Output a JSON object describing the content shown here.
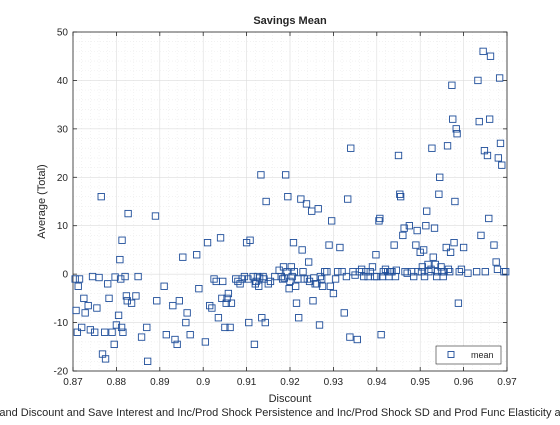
{
  "chart_data": {
    "type": "scatter",
    "title": "Savings Mean",
    "xlabel": "Discount",
    "ylabel": "Average (Total)",
    "footer": "and Discount and Save Interest and Inc/Prod Shock Persistence and Inc/Prod Shock SD and Prod Func Elasticity a",
    "xlim": [
      0.87,
      0.97
    ],
    "ylim": [
      -20,
      50
    ],
    "x_ticks": [
      "0.87",
      "0.88",
      "0.89",
      "0.9",
      "0.91",
      "0.92",
      "0.93",
      "0.94",
      "0.95",
      "0.96",
      "0.97"
    ],
    "y_ticks": [
      "-20",
      "-10",
      "0",
      "10",
      "20",
      "30",
      "40",
      "50"
    ],
    "grid": "major and minor, dotted",
    "legend": {
      "position": "bottom-right",
      "entries": [
        "mean"
      ]
    },
    "marker": "open square",
    "marker_color": "#1f4e9a",
    "series": [
      {
        "name": "mean",
        "points": [
          [
            0.8705,
            -1
          ],
          [
            0.8707,
            -7.5
          ],
          [
            0.871,
            -12
          ],
          [
            0.8712,
            -2.5
          ],
          [
            0.8715,
            -1
          ],
          [
            0.872,
            -11
          ],
          [
            0.8725,
            -5
          ],
          [
            0.8728,
            -8
          ],
          [
            0.8735,
            -6.5
          ],
          [
            0.874,
            -11.5
          ],
          [
            0.8745,
            -0.5
          ],
          [
            0.875,
            -12
          ],
          [
            0.8755,
            -7
          ],
          [
            0.876,
            -0.7
          ],
          [
            0.8765,
            16
          ],
          [
            0.8768,
            -16.5
          ],
          [
            0.8773,
            -12
          ],
          [
            0.8775,
            -17.5
          ],
          [
            0.878,
            -2
          ],
          [
            0.8783,
            -5
          ],
          [
            0.879,
            -12
          ],
          [
            0.8795,
            -14.5
          ],
          [
            0.8797,
            -0.6
          ],
          [
            0.88,
            -10.5
          ],
          [
            0.8805,
            -8.5
          ],
          [
            0.8808,
            3
          ],
          [
            0.881,
            -1
          ],
          [
            0.8812,
            -11
          ],
          [
            0.8813,
            7
          ],
          [
            0.8815,
            -12
          ],
          [
            0.882,
            -0.5
          ],
          [
            0.8823,
            -4.5
          ],
          [
            0.8825,
            -5.5
          ],
          [
            0.8827,
            12.5
          ],
          [
            0.8835,
            -6
          ],
          [
            0.8845,
            -4.5
          ],
          [
            0.885,
            -0.5
          ],
          [
            0.8858,
            -13
          ],
          [
            0.887,
            -11
          ],
          [
            0.8872,
            -18
          ],
          [
            0.889,
            12
          ],
          [
            0.8893,
            -5.5
          ],
          [
            0.891,
            -2.5
          ],
          [
            0.8915,
            -12.5
          ],
          [
            0.893,
            -6.5
          ],
          [
            0.8935,
            -13.5
          ],
          [
            0.894,
            -14.5
          ],
          [
            0.8945,
            -5.5
          ],
          [
            0.8953,
            3.5
          ],
          [
            0.896,
            -10
          ],
          [
            0.8963,
            -8
          ],
          [
            0.897,
            -12.5
          ],
          [
            0.8985,
            4
          ],
          [
            0.899,
            -3
          ],
          [
            0.9005,
            -14
          ],
          [
            0.901,
            6.5
          ],
          [
            0.9015,
            -6.5
          ],
          [
            0.902,
            -7
          ],
          [
            0.9025,
            -1
          ],
          [
            0.903,
            -1.5
          ],
          [
            0.9035,
            -9
          ],
          [
            0.904,
            7.5
          ],
          [
            0.9043,
            -5
          ],
          [
            0.9045,
            -1.5
          ],
          [
            0.905,
            -11
          ],
          [
            0.9053,
            -6
          ],
          [
            0.9055,
            -5
          ],
          [
            0.9058,
            -4
          ],
          [
            0.9062,
            -11
          ],
          [
            0.9065,
            -6
          ],
          [
            0.9075,
            -1
          ],
          [
            0.908,
            -1.5
          ],
          [
            0.9085,
            -2
          ],
          [
            0.909,
            -1
          ],
          [
            0.9095,
            -0.5
          ],
          [
            0.91,
            6.5
          ],
          [
            0.9103,
            -1
          ],
          [
            0.9105,
            -10
          ],
          [
            0.9108,
            7
          ],
          [
            0.9115,
            -0.5
          ],
          [
            0.9118,
            -14.5
          ],
          [
            0.912,
            -2
          ],
          [
            0.9122,
            -1.5
          ],
          [
            0.9125,
            -0.5
          ],
          [
            0.9128,
            -2.5
          ],
          [
            0.913,
            -0.8
          ],
          [
            0.9133,
            20.5
          ],
          [
            0.9135,
            -9
          ],
          [
            0.9138,
            -0.5
          ],
          [
            0.914,
            -1
          ],
          [
            0.9143,
            -10
          ],
          [
            0.9145,
            15
          ],
          [
            0.915,
            -2
          ],
          [
            0.9155,
            -1.5
          ],
          [
            0.9165,
            -0.5
          ],
          [
            0.9175,
            0.8
          ],
          [
            0.918,
            -0.5
          ],
          [
            0.9183,
            -1
          ],
          [
            0.9185,
            1.5
          ],
          [
            0.9187,
            -0.8
          ],
          [
            0.919,
            20.5
          ],
          [
            0.9193,
            0.5
          ],
          [
            0.9195,
            16
          ],
          [
            0.9198,
            -3
          ],
          [
            0.92,
            -1.5
          ],
          [
            0.9203,
            1.5
          ],
          [
            0.9205,
            -0.5
          ],
          [
            0.9208,
            6.5
          ],
          [
            0.921,
            0.5
          ],
          [
            0.9213,
            -2.5
          ],
          [
            0.9215,
            -6
          ],
          [
            0.9218,
            -1
          ],
          [
            0.922,
            -9
          ],
          [
            0.9225,
            15.5
          ],
          [
            0.9228,
            5
          ],
          [
            0.923,
            0.5
          ],
          [
            0.9233,
            -1
          ],
          [
            0.9238,
            14.5
          ],
          [
            0.924,
            -1
          ],
          [
            0.9243,
            2.5
          ],
          [
            0.9245,
            -1.5
          ],
          [
            0.925,
            13
          ],
          [
            0.9253,
            -5.5
          ],
          [
            0.9255,
            -0.8
          ],
          [
            0.9258,
            -2
          ],
          [
            0.9262,
            -2
          ],
          [
            0.9265,
            13.5
          ],
          [
            0.9268,
            -10.5
          ],
          [
            0.927,
            -0.5
          ],
          [
            0.9273,
            -1
          ],
          [
            0.9275,
            -2.5
          ],
          [
            0.928,
            0.5
          ],
          [
            0.9285,
            0.5
          ],
          [
            0.929,
            6
          ],
          [
            0.9293,
            -2.5
          ],
          [
            0.9296,
            11
          ],
          [
            0.93,
            -4
          ],
          [
            0.9305,
            -1
          ],
          [
            0.931,
            0.5
          ],
          [
            0.9315,
            5.5
          ],
          [
            0.932,
            0.5
          ],
          [
            0.9325,
            -8
          ],
          [
            0.933,
            -0.5
          ],
          [
            0.9333,
            15.5
          ],
          [
            0.9338,
            -13
          ],
          [
            0.934,
            26
          ],
          [
            0.9345,
            0.5
          ],
          [
            0.935,
            -0.2
          ],
          [
            0.9355,
            -13.5
          ],
          [
            0.936,
            0.5
          ],
          [
            0.9365,
            1
          ],
          [
            0.937,
            -0.5
          ],
          [
            0.9375,
            0.5
          ],
          [
            0.938,
            -0.5
          ],
          [
            0.9385,
            0.5
          ],
          [
            0.939,
            1.5
          ],
          [
            0.9395,
            -0.5
          ],
          [
            0.9398,
            4
          ],
          [
            0.94,
            -0.5
          ],
          [
            0.9405,
            11
          ],
          [
            0.9407,
            11.5
          ],
          [
            0.941,
            -12.5
          ],
          [
            0.9413,
            -0.5
          ],
          [
            0.9415,
            0.5
          ],
          [
            0.942,
            1
          ],
          [
            0.9425,
            0.5
          ],
          [
            0.9428,
            -0.5
          ],
          [
            0.9432,
            0.5
          ],
          [
            0.9435,
            0.5
          ],
          [
            0.944,
            6
          ],
          [
            0.9443,
            -0.5
          ],
          [
            0.9445,
            0.8
          ],
          [
            0.945,
            24.5
          ],
          [
            0.9453,
            16.5
          ],
          [
            0.9455,
            16
          ],
          [
            0.946,
            8
          ],
          [
            0.9463,
            9.5
          ],
          [
            0.9465,
            0.5
          ],
          [
            0.947,
            0.2
          ],
          [
            0.9475,
            10
          ],
          [
            0.948,
            0.5
          ],
          [
            0.9485,
            -0.5
          ],
          [
            0.949,
            6
          ],
          [
            0.9493,
            9
          ],
          [
            0.9495,
            0.5
          ],
          [
            0.95,
            4.5
          ],
          [
            0.9503,
            0.5
          ],
          [
            0.9505,
            1.5
          ],
          [
            0.9508,
            5
          ],
          [
            0.951,
            -0.5
          ],
          [
            0.9513,
            10
          ],
          [
            0.9515,
            13
          ],
          [
            0.9518,
            2
          ],
          [
            0.952,
            0.5
          ],
          [
            0.9525,
            1
          ],
          [
            0.9527,
            26
          ],
          [
            0.953,
            3.5
          ],
          [
            0.9533,
            9.5
          ],
          [
            0.9535,
            2
          ],
          [
            0.9538,
            -0.5
          ],
          [
            0.954,
            0.5
          ],
          [
            0.9543,
            16.5
          ],
          [
            0.9545,
            20
          ],
          [
            0.9548,
            1.5
          ],
          [
            0.955,
            0.5
          ],
          [
            0.9553,
            -0.5
          ],
          [
            0.9555,
            0.5
          ],
          [
            0.956,
            5.5
          ],
          [
            0.9563,
            26.5
          ],
          [
            0.9565,
            1
          ],
          [
            0.9568,
            0.5
          ],
          [
            0.957,
            4.5
          ],
          [
            0.9573,
            39
          ],
          [
            0.9575,
            32
          ],
          [
            0.9578,
            6.5
          ],
          [
            0.958,
            15
          ],
          [
            0.9583,
            30
          ],
          [
            0.9585,
            29
          ],
          [
            0.9588,
            -6
          ],
          [
            0.959,
            0.5
          ],
          [
            0.9595,
            1
          ],
          [
            0.96,
            5.5
          ],
          [
            0.961,
            0.2
          ],
          [
            0.963,
            0.5
          ],
          [
            0.9633,
            40
          ],
          [
            0.9636,
            31.5
          ],
          [
            0.964,
            8
          ],
          [
            0.9645,
            46
          ],
          [
            0.9648,
            25.5
          ],
          [
            0.965,
            0.5
          ],
          [
            0.9655,
            24.5
          ],
          [
            0.9658,
            11.5
          ],
          [
            0.966,
            32
          ],
          [
            0.9662,
            45
          ],
          [
            0.967,
            6
          ],
          [
            0.9675,
            2.5
          ],
          [
            0.9678,
            1
          ],
          [
            0.968,
            24
          ],
          [
            0.9683,
            40.5
          ],
          [
            0.9685,
            27
          ],
          [
            0.9688,
            22.5
          ],
          [
            0.9693,
            0.5
          ],
          [
            0.9697,
            0.5
          ]
        ]
      }
    ]
  }
}
